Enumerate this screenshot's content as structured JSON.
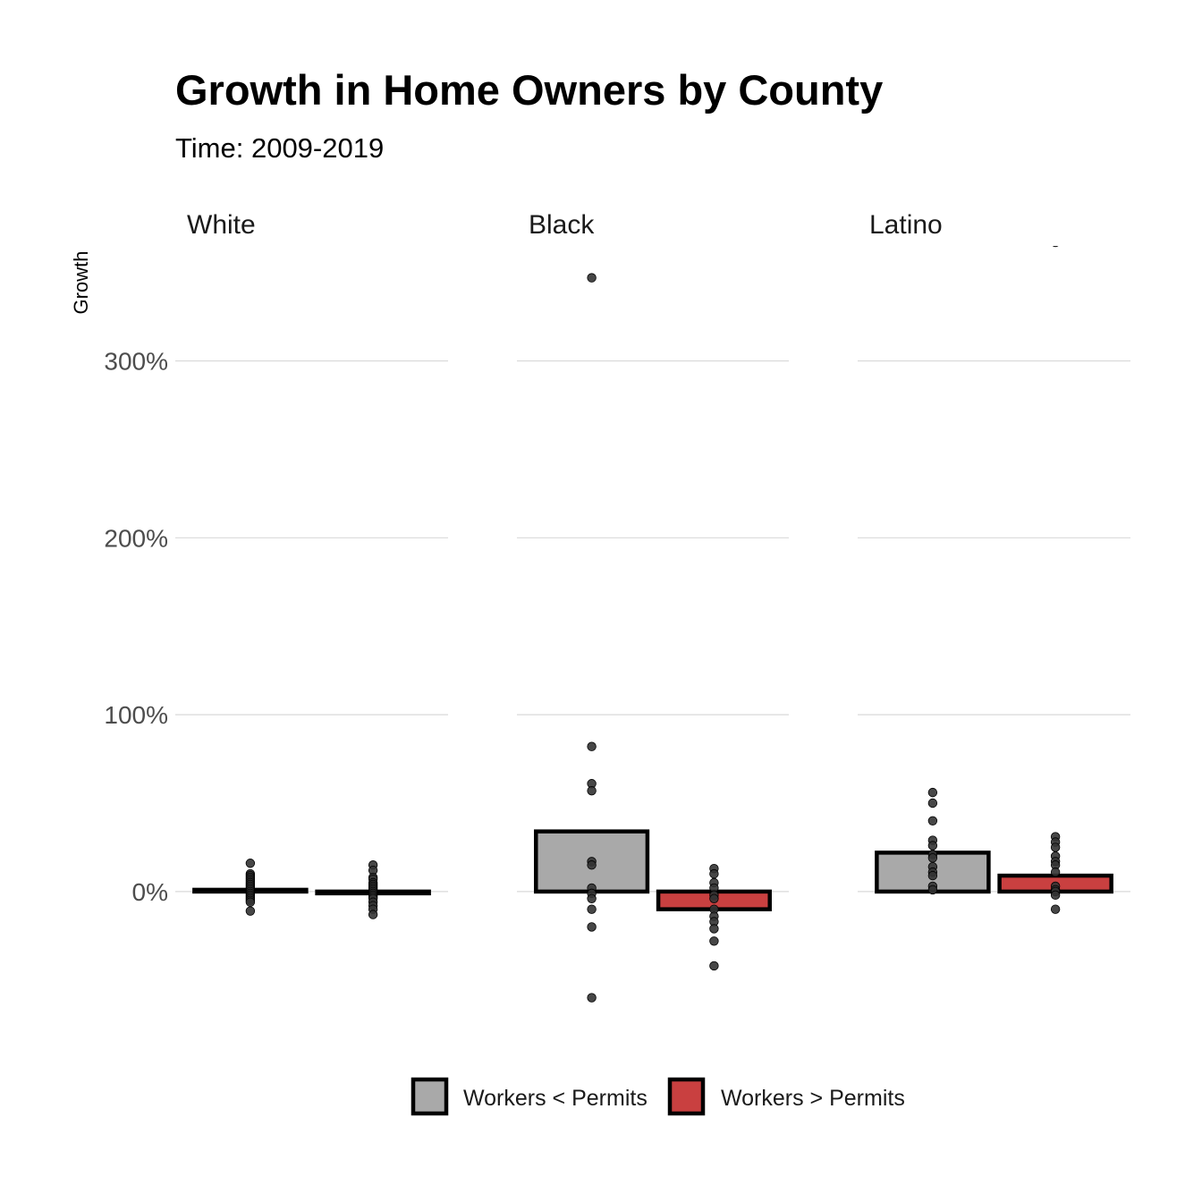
{
  "chart_data": {
    "type": "bar",
    "title": "Growth in Home Owners by County",
    "subtitle": "Time: 2009-2019",
    "ylabel": "Growth",
    "xlabel": "",
    "ylim": [
      -85,
      365
    ],
    "y_ticks": [
      {
        "value": 0,
        "label": "0%"
      },
      {
        "value": 100,
        "label": "100%"
      },
      {
        "value": 200,
        "label": "200%"
      },
      {
        "value": 300,
        "label": "300%"
      }
    ],
    "grid": "horizontal major only",
    "legend_position": "bottom",
    "groups": [
      {
        "name": "Workers < Permits",
        "color": "#a9a9a9"
      },
      {
        "name": "Workers > Permits",
        "color": "#c94040"
      }
    ],
    "facets": [
      {
        "label": "White",
        "bars": [
          {
            "group": "Workers < Permits",
            "mean": 1,
            "points": [
              16,
              10,
              9,
              8,
              7,
              6,
              5,
              4,
              3,
              2,
              1,
              0,
              -1,
              -2,
              -3,
              -4,
              -5,
              -6,
              -11
            ]
          },
          {
            "group": "Workers > Permits",
            "mean": -1,
            "points": [
              15,
              12,
              8,
              7,
              5,
              4,
              3,
              2,
              1,
              0,
              -1,
              -2,
              -3,
              -4,
              -6,
              -8,
              -10,
              -13
            ]
          }
        ]
      },
      {
        "label": "Black",
        "bars": [
          {
            "group": "Workers < Permits",
            "mean": 34,
            "points": [
              347,
              82,
              61,
              57,
              17,
              15,
              2,
              -1,
              -4,
              -10,
              -20,
              -60
            ]
          },
          {
            "group": "Workers > Permits",
            "mean": -10,
            "points": [
              13,
              10,
              5,
              2,
              -2,
              -4,
              -10,
              -14,
              -17,
              -21,
              -28,
              -42
            ]
          }
        ]
      },
      {
        "label": "Latino",
        "bars": [
          {
            "group": "Workers < Permits",
            "mean": 22,
            "points": [
              56,
              50,
              40,
              29,
              26,
              21,
              19,
              14,
              11,
              9,
              3,
              1
            ]
          },
          {
            "group": "Workers > Permits",
            "mean": 9,
            "points": [
              367,
              31,
              28,
              25,
              20,
              17,
              15,
              11,
              3,
              1,
              0,
              -2,
              -10
            ]
          }
        ]
      }
    ]
  }
}
